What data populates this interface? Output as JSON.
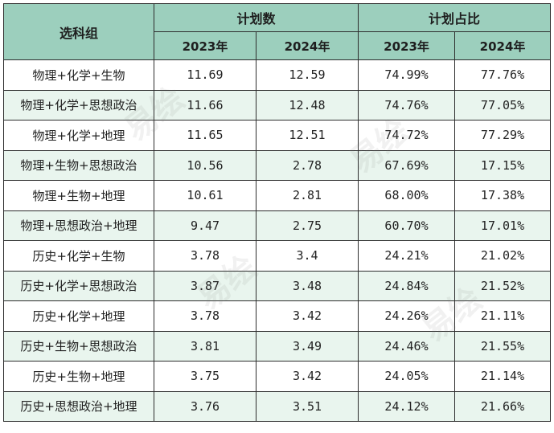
{
  "table": {
    "header": {
      "group_label": "选科组",
      "plan_count_label": "计划数",
      "plan_share_label": "计划占比",
      "years": [
        "2023年",
        "2024年",
        "2023年",
        "2024年"
      ]
    },
    "rows": [
      {
        "combo": "物理+化学+生物",
        "c2023": "11.69",
        "c2024": "12.59",
        "p2023": "74.99%",
        "p2024": "77.76%"
      },
      {
        "combo": "物理+化学+思想政治",
        "c2023": "11.66",
        "c2024": "12.48",
        "p2023": "74.76%",
        "p2024": "77.05%"
      },
      {
        "combo": "物理+化学+地理",
        "c2023": "11.65",
        "c2024": "12.51",
        "p2023": "74.72%",
        "p2024": "77.29%"
      },
      {
        "combo": "物理+生物+思想政治",
        "c2023": "10.56",
        "c2024": "2.78",
        "p2023": "67.69%",
        "p2024": "17.15%"
      },
      {
        "combo": "物理+生物+地理",
        "c2023": "10.61",
        "c2024": "2.81",
        "p2023": "68.00%",
        "p2024": "17.38%"
      },
      {
        "combo": "物理+思想政治+地理",
        "c2023": "9.47",
        "c2024": "2.75",
        "p2023": "60.70%",
        "p2024": "17.01%"
      },
      {
        "combo": "历史+化学+生物",
        "c2023": "3.78",
        "c2024": "3.4",
        "p2023": "24.21%",
        "p2024": "21.02%"
      },
      {
        "combo": "历史+化学+思想政治",
        "c2023": "3.87",
        "c2024": "3.48",
        "p2023": "24.84%",
        "p2024": "21.52%"
      },
      {
        "combo": "历史+化学+地理",
        "c2023": "3.78",
        "c2024": "3.42",
        "p2023": "24.26%",
        "p2024": "21.11%"
      },
      {
        "combo": "历史+生物+思想政治",
        "c2023": "3.81",
        "c2024": "3.49",
        "p2023": "24.46%",
        "p2024": "21.55%"
      },
      {
        "combo": "历史+生物+地理",
        "c2023": "3.75",
        "c2024": "3.42",
        "p2023": "24.05%",
        "p2024": "21.14%"
      },
      {
        "combo": "历史+思想政治+地理",
        "c2023": "3.76",
        "c2024": "3.51",
        "p2023": "24.12%",
        "p2024": "21.66%"
      }
    ]
  },
  "watermark": "易绘"
}
